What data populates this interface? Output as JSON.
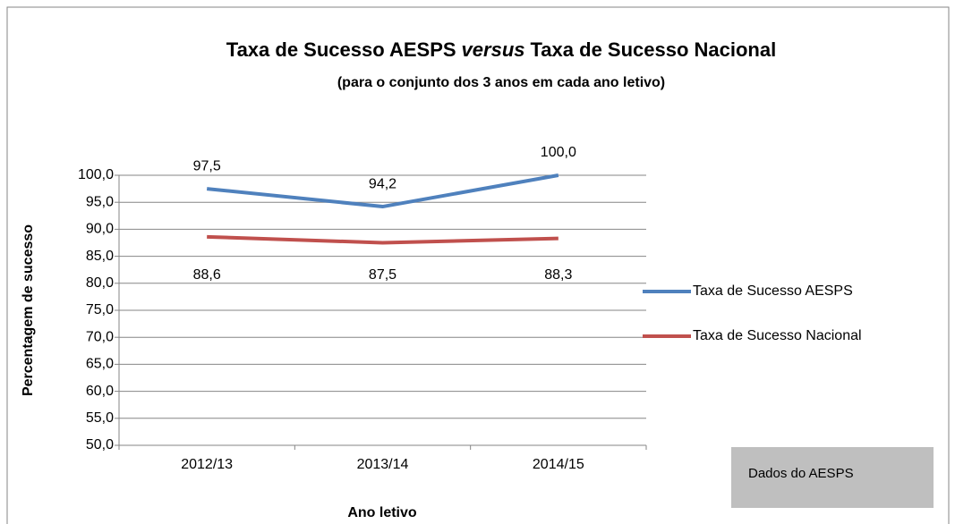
{
  "chart_data": {
    "type": "line",
    "title": [
      "Taxa de Sucesso AESPS",
      "versus",
      "Taxa de Sucesso Nacional"
    ],
    "subtitle": "(para o conjunto dos 3 anos em cada ano letivo)",
    "x_label": "Ano letivo",
    "y_label": "Percentagem de sucesso",
    "categories": [
      "2012/13",
      "2013/14",
      "2014/15"
    ],
    "series": [
      {
        "name": "Taxa de Sucesso AESPS",
        "color": "#4f81bd",
        "values": [
          97.5,
          94.2,
          100.0
        ],
        "value_labels": [
          "97,5",
          "94,2",
          "100,0"
        ]
      },
      {
        "name": "Taxa de Sucesso Nacional",
        "color": "#c0504d",
        "values": [
          88.6,
          87.5,
          88.3
        ],
        "value_labels": [
          "88,6",
          "87,5",
          "88,3"
        ]
      }
    ],
    "ylim": [
      50,
      100
    ],
    "yticks": [
      {
        "value": 50,
        "label": "50,0"
      },
      {
        "value": 55,
        "label": "55,0"
      },
      {
        "value": 60,
        "label": "60,0"
      },
      {
        "value": 65,
        "label": "65,0"
      },
      {
        "value": 70,
        "label": "70,0"
      },
      {
        "value": 75,
        "label": "75,0"
      },
      {
        "value": 80,
        "label": "80,0"
      },
      {
        "value": 85,
        "label": "85,0"
      },
      {
        "value": 90,
        "label": "90,0"
      },
      {
        "value": 95,
        "label": "95,0"
      },
      {
        "value": 100,
        "label": "100,0"
      }
    ],
    "grid": true,
    "legend": "right",
    "annotation": "Dados do AESPS"
  }
}
